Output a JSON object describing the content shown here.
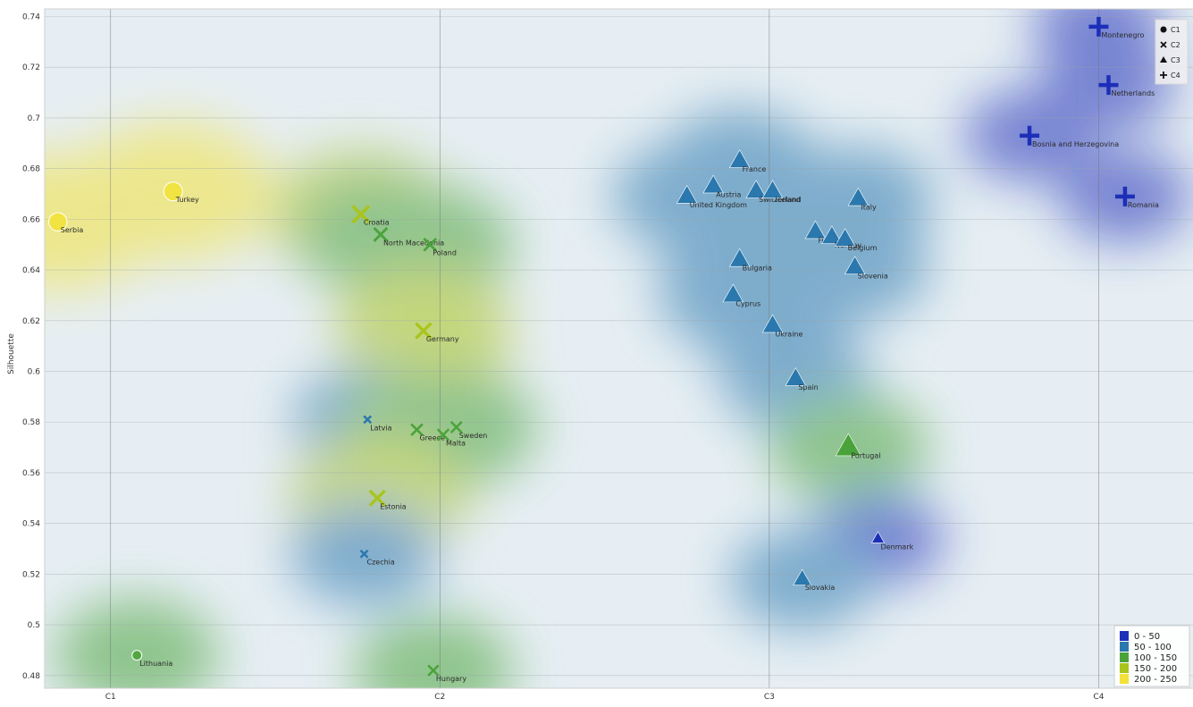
{
  "chart_data": {
    "type": "scatter",
    "ylabel": "Silhouette",
    "x_categories": [
      "C1",
      "C2",
      "C3",
      "C4"
    ],
    "ylim": [
      0.475,
      0.743
    ],
    "yticks": [
      0.48,
      0.5,
      0.52,
      0.54,
      0.56,
      0.58,
      0.6,
      0.62,
      0.64,
      0.66,
      0.68,
      0.7,
      0.72,
      0.74
    ],
    "grid": true,
    "legend_shapes": {
      "placement": "top-right",
      "items": [
        {
          "label": "C1",
          "marker": "circle"
        },
        {
          "label": "C2",
          "marker": "x"
        },
        {
          "label": "C3",
          "marker": "triangle"
        },
        {
          "label": "C4",
          "marker": "plus"
        }
      ]
    },
    "legend_colors": {
      "placement": "bottom-right",
      "items": [
        {
          "label": "0 - 50",
          "color": "#1d2fb8"
        },
        {
          "label": "50 - 100",
          "color": "#2a78ae"
        },
        {
          "label": "100 - 150",
          "color": "#4aa33a"
        },
        {
          "label": "150 - 200",
          "color": "#a9c41c"
        },
        {
          "label": "200 - 250",
          "color": "#f2e23a"
        }
      ]
    },
    "points": [
      {
        "label": "Serbia",
        "cluster": "C1",
        "x": 0.84,
        "y": 0.659,
        "size": 225
      },
      {
        "label": "Turkey",
        "cluster": "C1",
        "x": 1.19,
        "y": 0.671,
        "size": 230
      },
      {
        "label": "Lithuania",
        "cluster": "C1",
        "x": 1.08,
        "y": 0.488,
        "size": 120
      },
      {
        "label": "Croatia",
        "cluster": "C2",
        "x": 1.76,
        "y": 0.662,
        "size": 175
      },
      {
        "label": "North Macedonia",
        "cluster": "C2",
        "x": 1.82,
        "y": 0.654,
        "size": 140
      },
      {
        "label": "Poland",
        "cluster": "C2",
        "x": 1.97,
        "y": 0.65,
        "size": 130
      },
      {
        "label": "Germany",
        "cluster": "C2",
        "x": 1.95,
        "y": 0.616,
        "size": 160
      },
      {
        "label": "Latvia",
        "cluster": "C2",
        "x": 1.78,
        "y": 0.581,
        "size": 70
      },
      {
        "label": "Greece",
        "cluster": "C2",
        "x": 1.93,
        "y": 0.577,
        "size": 120
      },
      {
        "label": "Malta",
        "cluster": "C2",
        "x": 2.01,
        "y": 0.575,
        "size": 120
      },
      {
        "label": "Sweden",
        "cluster": "C2",
        "x": 2.05,
        "y": 0.578,
        "size": 115
      },
      {
        "label": "Estonia",
        "cluster": "C2",
        "x": 1.81,
        "y": 0.55,
        "size": 160
      },
      {
        "label": "Czechia",
        "cluster": "C2",
        "x": 1.77,
        "y": 0.528,
        "size": 70
      },
      {
        "label": "Hungary",
        "cluster": "C2",
        "x": 1.98,
        "y": 0.482,
        "size": 110
      },
      {
        "label": "France",
        "cluster": "C3",
        "x": 2.91,
        "y": 0.683,
        "size": 75
      },
      {
        "label": "Austria",
        "cluster": "C3",
        "x": 2.83,
        "y": 0.673,
        "size": 75
      },
      {
        "label": "United Kingdom",
        "cluster": "C3",
        "x": 2.75,
        "y": 0.669,
        "size": 75
      },
      {
        "label": "Switzerland",
        "cluster": "C3",
        "x": 2.96,
        "y": 0.671,
        "size": 75
      },
      {
        "label": "Iceland",
        "cluster": "C3",
        "x": 3.01,
        "y": 0.671,
        "size": 75
      },
      {
        "label": "Italy",
        "cluster": "C3",
        "x": 3.27,
        "y": 0.668,
        "size": 75
      },
      {
        "label": "Finland",
        "cluster": "C3",
        "x": 3.14,
        "y": 0.655,
        "size": 75
      },
      {
        "label": "Norway",
        "cluster": "C3",
        "x": 3.19,
        "y": 0.653,
        "size": 75
      },
      {
        "label": "Belgium",
        "cluster": "C3",
        "x": 3.23,
        "y": 0.652,
        "size": 75
      },
      {
        "label": "Bulgaria",
        "cluster": "C3",
        "x": 2.91,
        "y": 0.644,
        "size": 75
      },
      {
        "label": "Slovenia",
        "cluster": "C3",
        "x": 3.26,
        "y": 0.641,
        "size": 75
      },
      {
        "label": "Cyprus",
        "cluster": "C3",
        "x": 2.89,
        "y": 0.63,
        "size": 75
      },
      {
        "label": "Ukraine",
        "cluster": "C3",
        "x": 3.01,
        "y": 0.618,
        "size": 75
      },
      {
        "label": "Spain",
        "cluster": "C3",
        "x": 3.08,
        "y": 0.597,
        "size": 75
      },
      {
        "label": "Portugal",
        "cluster": "C3",
        "x": 3.24,
        "y": 0.57,
        "size": 110
      },
      {
        "label": "Denmark",
        "cluster": "C3",
        "x": 3.33,
        "y": 0.534,
        "size": 25
      },
      {
        "label": "Slovakia",
        "cluster": "C3",
        "x": 3.1,
        "y": 0.518,
        "size": 60
      },
      {
        "label": "Montenegro",
        "cluster": "C4",
        "x": 4.0,
        "y": 0.736,
        "size": 20
      },
      {
        "label": "Netherlands",
        "cluster": "C4",
        "x": 4.03,
        "y": 0.713,
        "size": 20
      },
      {
        "label": "Bosnia and Herzegovina",
        "cluster": "C4",
        "x": 3.79,
        "y": 0.693,
        "size": 20
      },
      {
        "label": "Romania",
        "cluster": "C4",
        "x": 4.08,
        "y": 0.669,
        "size": 20
      }
    ]
  }
}
